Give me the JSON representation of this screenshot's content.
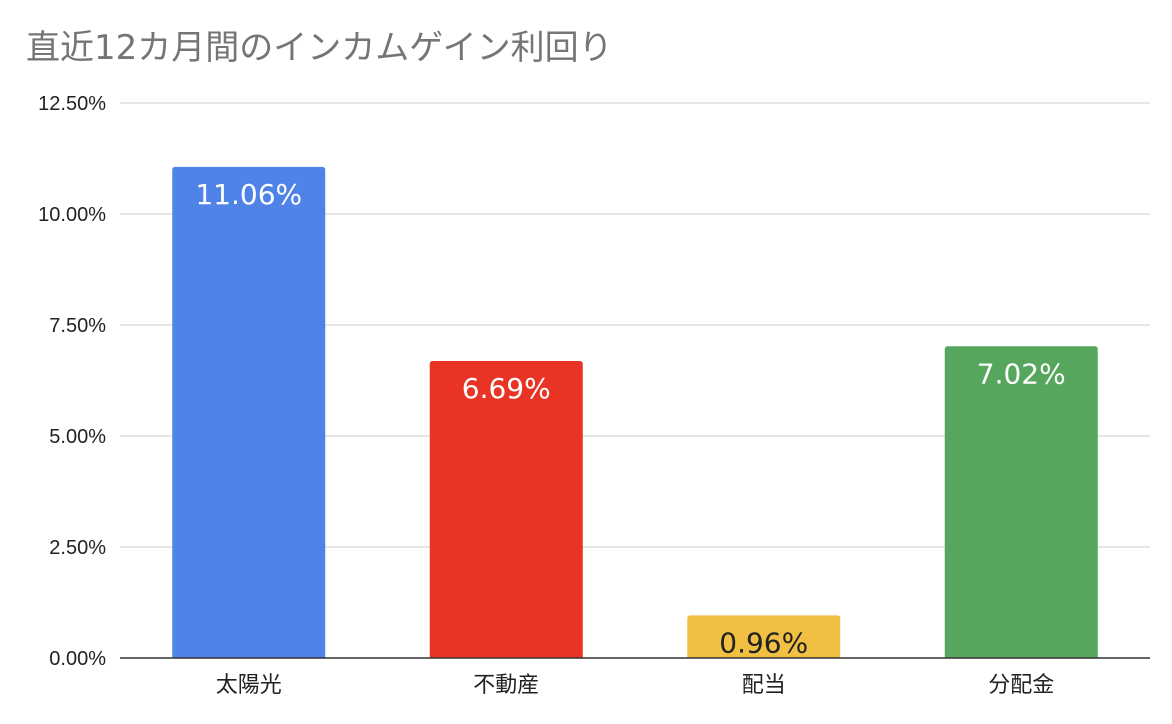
{
  "chart_data": {
    "type": "bar",
    "title": "直近12カ月間のインカムゲイン利回り",
    "xlabel": "",
    "ylabel": "",
    "categories": [
      "太陽光",
      "不動産",
      "配当",
      "分配金"
    ],
    "values": [
      11.06,
      6.69,
      0.96,
      7.02
    ],
    "data_labels": [
      "11.06%",
      "6.69%",
      "0.96%",
      "7.02%"
    ],
    "bar_colors": [
      "#5083e8",
      "#e93425",
      "#f1c042",
      "#56a65d"
    ],
    "data_label_colors": [
      "#ffffff",
      "#ffffff",
      "#222222",
      "#ffffff"
    ],
    "ylim": [
      0,
      12.5
    ],
    "yticks": [
      0,
      2.5,
      5,
      7.5,
      10,
      12.5
    ],
    "ytick_labels": [
      "0.00%",
      "2.50%",
      "5.00%",
      "7.50%",
      "10.00%",
      "12.50%"
    ],
    "grid": true,
    "legend": "none"
  }
}
